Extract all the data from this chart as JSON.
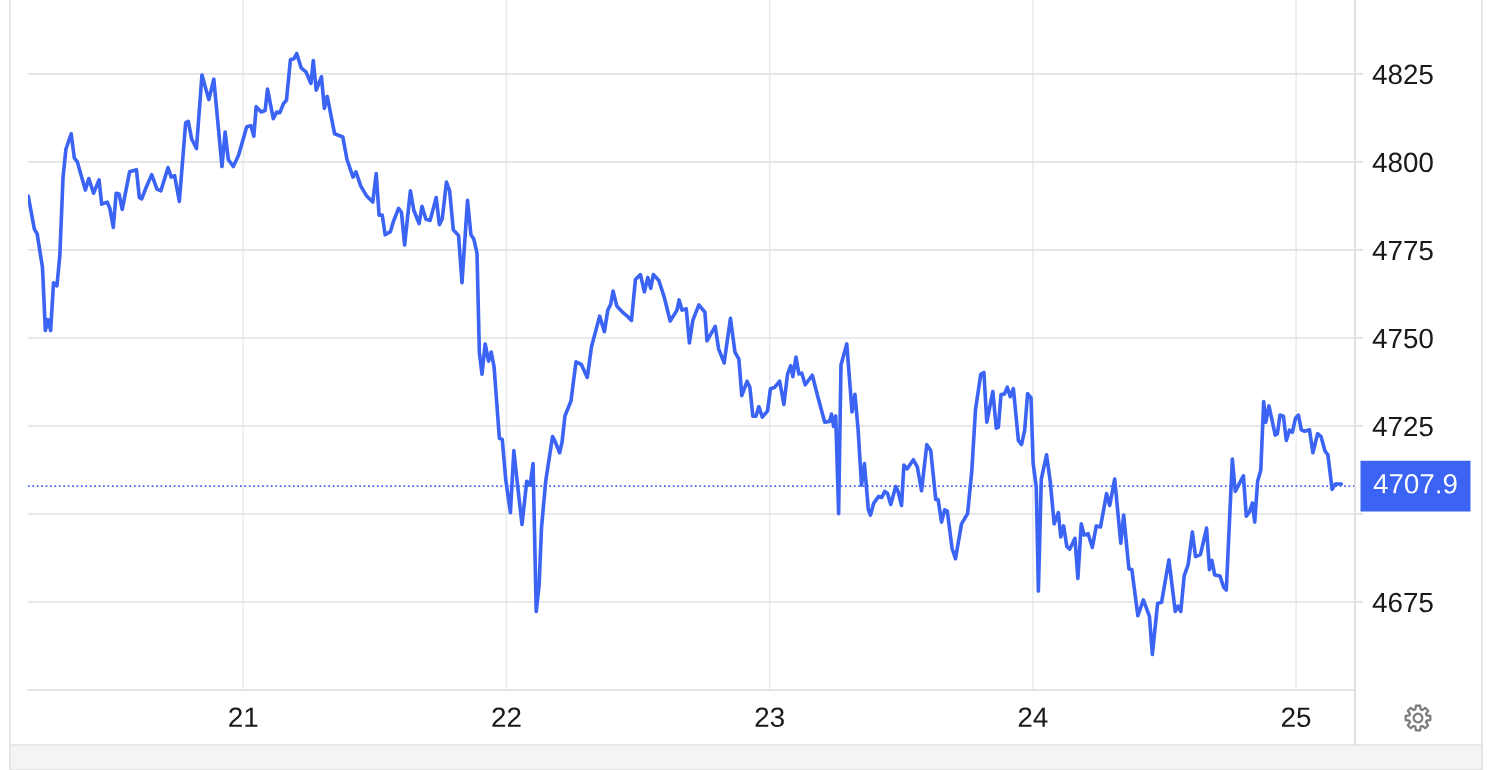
{
  "chart_data": {
    "type": "line",
    "x": [
      20.183,
      20.206,
      20.217,
      20.237,
      20.248,
      20.258,
      20.268,
      20.279,
      20.292,
      20.303,
      20.315,
      20.326,
      20.346,
      20.358,
      20.369,
      20.382,
      20.4,
      20.413,
      20.431,
      20.452,
      20.462,
      20.483,
      20.493,
      20.506,
      20.517,
      20.528,
      20.54,
      20.568,
      20.594,
      20.605,
      20.614,
      20.63,
      20.652,
      20.672,
      20.687,
      20.714,
      20.726,
      20.739,
      20.757,
      20.781,
      20.791,
      20.804,
      20.822,
      20.843,
      20.869,
      20.888,
      20.919,
      20.931,
      20.943,
      20.962,
      20.982,
      21.013,
      21.029,
      21.04,
      21.049,
      21.068,
      21.083,
      21.092,
      21.114,
      21.127,
      21.139,
      21.153,
      21.164,
      21.179,
      21.192,
      21.203,
      21.22,
      21.238,
      21.257,
      21.266,
      21.277,
      21.297,
      21.308,
      21.319,
      21.347,
      21.378,
      21.394,
      21.417,
      21.428,
      21.446,
      21.469,
      21.492,
      21.505,
      21.516,
      21.528,
      21.539,
      21.559,
      21.57,
      21.59,
      21.601,
      21.613,
      21.635,
      21.648,
      21.668,
      21.679,
      21.694,
      21.71,
      21.733,
      21.745,
      21.756,
      21.772,
      21.784,
      21.798,
      21.818,
      21.831,
      21.852,
      21.865,
      21.876,
      21.888,
      21.897,
      21.907,
      21.919,
      21.932,
      21.942,
      21.953,
      21.973,
      21.984,
      21.997,
      22.015,
      22.028,
      22.043,
      22.059,
      22.077,
      22.09,
      22.101,
      22.113,
      22.124,
      22.133,
      22.149,
      22.175,
      22.183,
      22.202,
      22.211,
      22.222,
      22.245,
      22.264,
      22.284,
      22.307,
      22.323,
      22.354,
      22.372,
      22.385,
      22.396,
      22.405,
      22.419,
      22.444,
      22.459,
      22.475,
      22.49,
      22.509,
      22.524,
      22.537,
      22.548,
      22.558,
      22.579,
      22.599,
      22.622,
      22.648,
      22.656,
      22.667,
      22.683,
      22.695,
      22.708,
      22.731,
      22.754,
      22.762,
      22.793,
      22.806,
      22.827,
      22.851,
      22.868,
      22.883,
      22.894,
      22.914,
      22.925,
      22.936,
      22.948,
      22.959,
      22.972,
      22.992,
      23.003,
      23.018,
      23.038,
      23.054,
      23.068,
      23.08,
      23.088,
      23.1,
      23.111,
      23.122,
      23.135,
      23.162,
      23.184,
      23.209,
      23.228,
      23.235,
      23.243,
      23.251,
      23.262,
      23.271,
      23.293,
      23.313,
      23.324,
      23.336,
      23.349,
      23.36,
      23.375,
      23.383,
      23.395,
      23.414,
      23.426,
      23.437,
      23.448,
      23.46,
      23.479,
      23.488,
      23.501,
      23.51,
      23.522,
      23.546,
      23.561,
      23.577,
      23.597,
      23.612,
      23.631,
      23.64,
      23.653,
      23.665,
      23.675,
      23.693,
      23.706,
      23.729,
      23.752,
      23.768,
      23.782,
      23.802,
      23.814,
      23.825,
      23.848,
      23.861,
      23.869,
      23.879,
      23.892,
      23.903,
      23.914,
      23.926,
      23.945,
      23.957,
      23.969,
      23.98,
      23.993,
      24.001,
      24.013,
      24.021,
      24.032,
      24.052,
      24.066,
      24.081,
      24.097,
      24.106,
      24.117,
      24.129,
      24.14,
      24.16,
      24.171,
      24.184,
      24.195,
      24.21,
      24.226,
      24.241,
      24.257,
      24.28,
      24.292,
      24.311,
      24.334,
      24.345,
      24.365,
      24.376,
      24.399,
      24.42,
      24.443,
      24.454,
      24.474,
      24.489,
      24.517,
      24.541,
      24.551,
      24.562,
      24.575,
      24.59,
      24.606,
      24.618,
      24.637,
      24.66,
      24.671,
      24.68,
      24.691,
      24.711,
      24.725,
      24.735,
      24.758,
      24.769,
      24.8,
      24.811,
      24.823,
      24.834,
      24.843,
      24.854,
      24.866,
      24.877,
      24.885,
      24.897,
      24.921,
      24.929,
      24.939,
      24.952,
      24.963,
      24.975,
      24.986,
      24.998,
      25.009,
      25.02,
      25.033,
      25.051,
      25.064,
      25.082,
      25.095,
      25.11,
      25.121,
      25.137,
      25.149,
      25.172
    ],
    "series": [
      {
        "color": "#3b63f4",
        "values": [
          4790.3,
          4781.0,
          4779.5,
          4770.0,
          4752.1,
          4755.2,
          4752.1,
          4765.7,
          4764.8,
          4773.5,
          4795.5,
          4803.6,
          4808.0,
          4801.1,
          4800.1,
          4796.7,
          4792.0,
          4795.3,
          4791.1,
          4794.9,
          4788.0,
          4788.6,
          4786.8,
          4781.4,
          4791.1,
          4790.9,
          4786.5,
          4797.2,
          4797.8,
          4789.9,
          4789.5,
          4792.6,
          4796.4,
          4792.3,
          4791.8,
          4798.4,
          4795.7,
          4796.1,
          4788.8,
          4811.1,
          4811.5,
          4806.5,
          4803.8,
          4824.7,
          4817.7,
          4823.5,
          4798.7,
          4808.5,
          4800.7,
          4798.7,
          4801.9,
          4810.0,
          4810.3,
          4807.3,
          4815.7,
          4814.2,
          4814.6,
          4820.7,
          4812.3,
          4814.2,
          4814.0,
          4816.6,
          4817.5,
          4829.0,
          4829.3,
          4830.8,
          4826.7,
          4825.6,
          4822.3,
          4828.8,
          4820.4,
          4824.2,
          4815.2,
          4818.6,
          4808.0,
          4807.1,
          4800.7,
          4795.7,
          4797.2,
          4793.2,
          4790.3,
          4788.6,
          4796.7,
          4784.9,
          4784.9,
          4779.3,
          4780.2,
          4783.0,
          4786.8,
          4785.7,
          4776.4,
          4791.8,
          4786.2,
          4782.5,
          4787.4,
          4783.7,
          4783.4,
          4789.9,
          4782.2,
          4783.9,
          4794.3,
          4791.8,
          4780.7,
          4779.1,
          4765.7,
          4789.1,
          4779.3,
          4778.1,
          4774.1,
          4745.8,
          4739.7,
          4748.3,
          4743.4,
          4746.0,
          4741.7,
          4721.5,
          4721.2,
          4709.9,
          4700.4,
          4718.0,
          4707.6,
          4697.0,
          4709.3,
          4708.2,
          4714.3,
          4672.3,
          4679.8,
          4696.0,
          4709.3,
          4722.0,
          4720.9,
          4717.4,
          4720.3,
          4727.8,
          4732.1,
          4743.2,
          4742.5,
          4738.8,
          4747.5,
          4756.2,
          4751.8,
          4757.9,
          4759.6,
          4763.3,
          4759.1,
          4757.1,
          4756.2,
          4755.0,
          4766.6,
          4768.0,
          4763.1,
          4767.2,
          4764.1,
          4768.0,
          4766.3,
          4761.7,
          4754.8,
          4757.9,
          4760.8,
          4757.9,
          4758.3,
          4748.6,
          4755.0,
          4759.4,
          4757.3,
          4749.2,
          4753.3,
          4746.9,
          4742.9,
          4755.6,
          4746.0,
          4744.0,
          4733.6,
          4737.7,
          4735.9,
          4727.8,
          4727.8,
          4730.5,
          4727.5,
          4729.3,
          4735.6,
          4735.9,
          4737.7,
          4731.1,
          4739.8,
          4742.1,
          4739.0,
          4744.6,
          4739.8,
          4740.0,
          4736.7,
          4739.4,
          4733.0,
          4726.1,
          4726.3,
          4728.4,
          4724.9,
          4727.8,
          4700.1,
          4742.3,
          4748.3,
          4729.0,
          4734.0,
          4724.0,
          4708.2,
          4714.3,
          4701.2,
          4699.7,
          4703.0,
          4705.0,
          4704.7,
          4706.4,
          4705.8,
          4702.7,
          4707.8,
          4706.4,
          4702.4,
          4713.9,
          4712.8,
          4715.4,
          4713.4,
          4706.6,
          4719.7,
          4718.0,
          4704.1,
          4704.1,
          4697.7,
          4701.2,
          4700.8,
          4690.2,
          4687.3,
          4697.2,
          4700.1,
          4712.2,
          4729.6,
          4739.7,
          4740.2,
          4726.1,
          4734.8,
          4724.4,
          4724.7,
          4733.9,
          4734.1,
          4736.0,
          4733.3,
          4735.6,
          4720.9,
          4719.7,
          4723.8,
          4734.2,
          4733.0,
          4714.5,
          4707.6,
          4678.1,
          4709.9,
          4716.8,
          4709.3,
          4697.2,
          4700.4,
          4693.5,
          4696.6,
          4690.8,
          4690.0,
          4693.1,
          4681.7,
          4697.2,
          4694.0,
          4694.4,
          4690.5,
          4696.6,
          4696.3,
          4705.8,
          4702.4,
          4709.9,
          4691.7,
          4699.7,
          4684.4,
          4684.2,
          4671.1,
          4675.6,
          4670.9,
          4660.1,
          4674.6,
          4674.9,
          4687.0,
          4672.3,
          4673.8,
          4672.3,
          4682.4,
          4685.6,
          4694.9,
          4687.9,
          4688.5,
          4696.0,
          4684.2,
          4686.8,
          4682.7,
          4682.4,
          4679.2,
          4678.4,
          4715.6,
          4706.4,
          4710.8,
          4699.4,
          4700.6,
          4703.1,
          4697.7,
          4709.3,
          4712.4,
          4731.9,
          4726.1,
          4730.7,
          4722.4,
          4722.8,
          4728.1,
          4727.8,
          4720.9,
          4723.8,
          4723.2,
          4727.2,
          4728.1,
          4723.9,
          4723.5,
          4723.9,
          4717.4,
          4722.8,
          4722.0,
          4717.9,
          4716.8,
          4707.0,
          4708.5,
          4708.5
        ]
      }
    ],
    "xlim": [
      20.182,
      25.224
    ],
    "xticks": [
      21,
      22,
      23,
      24,
      25
    ],
    "ylim": [
      4650,
      4846
    ],
    "yticks": [
      4675,
      {
        "value": 4700,
        "label": null
      },
      4725,
      4750,
      4775,
      4800,
      4825
    ],
    "grid": true,
    "line_style": "solid",
    "ref_lines": [
      {
        "axis": "y",
        "value": 4707.9,
        "label": "4707.9",
        "color": "#3b63f4",
        "line_style": "dotted"
      }
    ]
  }
}
